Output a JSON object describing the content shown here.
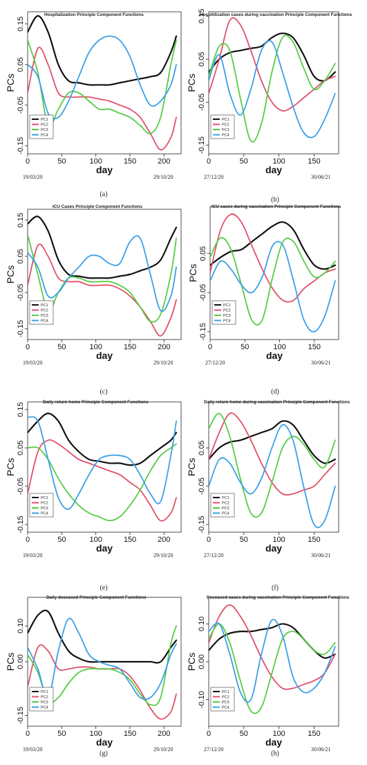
{
  "figure": {
    "y_axis_label": "PCs",
    "x_axis_label": "day"
  },
  "colors": {
    "PC1": "#111111",
    "PC2": "#e0506a",
    "PC3": "#55cc44",
    "PC4": "#3aa0e6"
  },
  "chart_data": [
    {
      "type": "line",
      "caption": "(a)",
      "title": "Hospitalization Principle Component Functions",
      "start_date": "19/03/20",
      "end_date": "29/10/20",
      "legend": "bottom-left",
      "xlim": [
        0,
        225
      ],
      "ylim": [
        -0.17,
        0.18
      ],
      "xticks": [
        "0",
        "50",
        "100",
        "150",
        "200"
      ],
      "xtick_values": [
        0,
        50,
        100,
        150,
        200
      ],
      "yticks": [
        "0.15",
        "0.05",
        "-0.05",
        "-0.15"
      ],
      "ytick_values": [
        0.15,
        0.05,
        -0.05,
        -0.15
      ],
      "x": [
        0,
        15,
        30,
        45,
        60,
        75,
        90,
        105,
        120,
        135,
        150,
        165,
        180,
        195,
        210,
        218
      ],
      "series": [
        {
          "name": "PC1",
          "values": [
            0.13,
            0.17,
            0.13,
            0.05,
            0.01,
            0.005,
            0.0,
            0.0,
            0.0,
            0.005,
            0.01,
            0.015,
            0.02,
            0.03,
            0.08,
            0.12
          ]
        },
        {
          "name": "PC2",
          "values": [
            -0.02,
            0.09,
            0.05,
            -0.02,
            -0.03,
            -0.03,
            -0.03,
            -0.035,
            -0.04,
            -0.05,
            -0.06,
            -0.08,
            -0.12,
            -0.16,
            -0.13,
            -0.08
          ]
        },
        {
          "name": "PC3",
          "values": [
            0.11,
            0.03,
            -0.1,
            -0.06,
            -0.02,
            -0.02,
            -0.04,
            -0.06,
            -0.06,
            -0.07,
            -0.08,
            -0.1,
            -0.12,
            -0.08,
            0.05,
            0.11
          ]
        },
        {
          "name": "PC4",
          "values": [
            0.05,
            0.02,
            -0.07,
            -0.08,
            -0.04,
            0.02,
            0.08,
            0.11,
            0.12,
            0.11,
            0.07,
            0.0,
            -0.05,
            -0.04,
            0.0,
            0.05
          ]
        }
      ]
    },
    {
      "type": "line",
      "caption": "(b)",
      "title": "Hospitilization cases during vaccination Principle Component Functions",
      "start_date": "27/12/20",
      "end_date": "30/06/21",
      "legend": "bottom-left",
      "xlim": [
        0,
        185
      ],
      "ylim": [
        -0.17,
        0.16
      ],
      "xticks": [
        "0",
        "50",
        "100",
        "150"
      ],
      "xtick_values": [
        0,
        50,
        100,
        150
      ],
      "yticks": [
        "0.15",
        "0.05",
        "-0.05",
        "-0.15"
      ],
      "ytick_values": [
        0.15,
        0.05,
        -0.05,
        -0.15
      ],
      "x": [
        0,
        15,
        30,
        45,
        60,
        75,
        90,
        105,
        120,
        135,
        150,
        165,
        180
      ],
      "series": [
        {
          "name": "PC1",
          "values": [
            0.02,
            0.05,
            0.065,
            0.07,
            0.075,
            0.08,
            0.1,
            0.11,
            0.1,
            0.06,
            0.01,
            0.0,
            0.02
          ]
        },
        {
          "name": "PC2",
          "values": [
            -0.03,
            0.05,
            0.14,
            0.13,
            0.07,
            0.0,
            -0.05,
            -0.07,
            -0.06,
            -0.04,
            -0.02,
            0.0,
            0.01
          ]
        },
        {
          "name": "PC3",
          "values": [
            0.01,
            0.08,
            0.07,
            -0.04,
            -0.14,
            -0.1,
            0.02,
            0.1,
            0.09,
            0.03,
            -0.02,
            0.0,
            0.04
          ]
        },
        {
          "name": "PC4",
          "values": [
            0.0,
            0.06,
            -0.03,
            -0.08,
            -0.02,
            0.07,
            0.09,
            0.02,
            -0.06,
            -0.12,
            -0.13,
            -0.09,
            -0.03
          ]
        }
      ]
    },
    {
      "type": "line",
      "caption": "(c)",
      "title": "ICU Cases Principle Component Functions",
      "start_date": "19/03/20",
      "end_date": "29/10/20",
      "legend": "bottom-left",
      "xlim": [
        0,
        225
      ],
      "ylim": [
        -0.18,
        0.18
      ],
      "xticks": [
        "0",
        "50",
        "100",
        "150",
        "200"
      ],
      "xtick_values": [
        0,
        50,
        100,
        150,
        200
      ],
      "yticks": [
        "0.15",
        "0.05",
        "-0.05",
        "-0.15"
      ],
      "ytick_values": [
        0.15,
        0.05,
        -0.05,
        -0.15
      ],
      "x": [
        0,
        15,
        30,
        45,
        60,
        75,
        90,
        105,
        120,
        135,
        150,
        165,
        180,
        195,
        210,
        218
      ],
      "series": [
        {
          "name": "PC1",
          "values": [
            0.14,
            0.16,
            0.12,
            0.04,
            0.0,
            -0.005,
            -0.01,
            -0.01,
            -0.01,
            -0.005,
            0.0,
            0.01,
            0.02,
            0.04,
            0.1,
            0.13
          ]
        },
        {
          "name": "PC2",
          "values": [
            -0.03,
            0.08,
            0.05,
            -0.01,
            -0.02,
            -0.02,
            -0.03,
            -0.03,
            -0.03,
            -0.04,
            -0.06,
            -0.09,
            -0.13,
            -0.17,
            -0.12,
            -0.07
          ]
        },
        {
          "name": "PC3",
          "values": [
            0.11,
            0.0,
            -0.1,
            -0.05,
            -0.01,
            -0.01,
            -0.02,
            -0.02,
            -0.02,
            -0.03,
            -0.05,
            -0.09,
            -0.13,
            -0.11,
            0.0,
            0.1
          ]
        },
        {
          "name": "PC4",
          "values": [
            0.06,
            0.02,
            -0.06,
            -0.05,
            -0.01,
            0.02,
            0.05,
            0.05,
            0.03,
            0.03,
            0.09,
            0.1,
            0.0,
            -0.1,
            -0.06,
            0.02
          ]
        }
      ]
    },
    {
      "type": "line",
      "caption": "(d)",
      "title": "ICU cases during vaccination Principle Component Functions",
      "start_date": "27/12/20",
      "end_date": "30/06/21",
      "legend": "bottom-left",
      "xlim": [
        0,
        185
      ],
      "ylim": [
        -0.17,
        0.17
      ],
      "xticks": [
        "0",
        "50",
        "100",
        "150"
      ],
      "xtick_values": [
        0,
        50,
        100,
        150
      ],
      "yticks": [
        "0.05",
        "-0.05",
        "-0.15"
      ],
      "ytick_values": [
        0.05,
        -0.05,
        -0.15
      ],
      "x": [
        0,
        15,
        30,
        45,
        60,
        75,
        90,
        105,
        120,
        135,
        150,
        165,
        180
      ],
      "series": [
        {
          "name": "PC1",
          "values": [
            0.02,
            0.04,
            0.055,
            0.06,
            0.08,
            0.1,
            0.12,
            0.13,
            0.11,
            0.06,
            0.02,
            0.01,
            0.02
          ]
        },
        {
          "name": "PC2",
          "values": [
            0.0,
            0.11,
            0.15,
            0.13,
            0.07,
            0.01,
            -0.04,
            -0.07,
            -0.07,
            -0.04,
            -0.02,
            0.0,
            0.01
          ]
        },
        {
          "name": "PC3",
          "values": [
            0.04,
            0.09,
            0.06,
            -0.03,
            -0.12,
            -0.12,
            -0.01,
            0.08,
            0.08,
            0.03,
            -0.01,
            0.0,
            0.03
          ]
        },
        {
          "name": "PC4",
          "values": [
            -0.02,
            0.03,
            0.01,
            -0.03,
            -0.05,
            -0.01,
            0.07,
            0.07,
            -0.02,
            -0.12,
            -0.15,
            -0.11,
            -0.02
          ]
        }
      ]
    },
    {
      "type": "line",
      "caption": "(e)",
      "title": "Daily return home Principle Component Functions",
      "start_date": "19/03/20",
      "end_date": "29/10/20",
      "legend": "bottom-left",
      "xlim": [
        0,
        225
      ],
      "ylim": [
        -0.17,
        0.17
      ],
      "xticks": [
        "0",
        "50",
        "100",
        "150",
        "200"
      ],
      "xtick_values": [
        0,
        50,
        100,
        150,
        200
      ],
      "yticks": [
        "0.15",
        "0.05",
        "-0.05",
        "-0.15"
      ],
      "ytick_values": [
        0.15,
        0.05,
        -0.05,
        -0.15
      ],
      "x": [
        0,
        15,
        30,
        45,
        60,
        75,
        90,
        105,
        120,
        135,
        150,
        165,
        180,
        195,
        210,
        218
      ],
      "series": [
        {
          "name": "PC1",
          "values": [
            0.09,
            0.12,
            0.14,
            0.12,
            0.07,
            0.04,
            0.02,
            0.015,
            0.01,
            0.01,
            0.005,
            0.01,
            0.03,
            0.05,
            0.07,
            0.09
          ]
        },
        {
          "name": "PC2",
          "values": [
            -0.07,
            0.04,
            0.07,
            0.06,
            0.04,
            0.02,
            0.01,
            0.0,
            -0.01,
            -0.02,
            -0.04,
            -0.06,
            -0.1,
            -0.14,
            -0.12,
            -0.08
          ]
        },
        {
          "name": "PC3",
          "values": [
            0.05,
            0.05,
            0.02,
            -0.03,
            -0.07,
            -0.1,
            -0.12,
            -0.13,
            -0.14,
            -0.13,
            -0.1,
            -0.06,
            -0.01,
            0.03,
            0.05,
            0.06
          ]
        },
        {
          "name": "PC4",
          "values": [
            0.13,
            0.12,
            0.02,
            -0.08,
            -0.11,
            -0.07,
            -0.02,
            0.02,
            0.03,
            0.03,
            0.02,
            -0.02,
            -0.07,
            -0.09,
            0.03,
            0.12
          ]
        }
      ]
    },
    {
      "type": "line",
      "caption": "(f)",
      "title": "Daily return home during vaccination Principle Component Functions",
      "start_date": "27/12/20",
      "end_date": "30/06/21",
      "legend": "bottom-left",
      "xlim": [
        0,
        185
      ],
      "ylim": [
        -0.17,
        0.17
      ],
      "xticks": [
        "0",
        "50",
        "100",
        "150"
      ],
      "xtick_values": [
        0,
        50,
        100,
        150
      ],
      "yticks": [
        "0.05",
        "-0.05",
        "-0.15"
      ],
      "ytick_values": [
        0.05,
        -0.05,
        -0.15
      ],
      "x": [
        0,
        15,
        30,
        45,
        60,
        75,
        90,
        105,
        120,
        135,
        150,
        165,
        180
      ],
      "series": [
        {
          "name": "PC1",
          "values": [
            0.02,
            0.05,
            0.065,
            0.07,
            0.08,
            0.09,
            0.1,
            0.12,
            0.11,
            0.07,
            0.03,
            0.01,
            0.02
          ]
        },
        {
          "name": "PC2",
          "values": [
            0.02,
            0.09,
            0.14,
            0.12,
            0.07,
            0.01,
            -0.04,
            -0.07,
            -0.07,
            -0.06,
            -0.05,
            -0.02,
            0.01
          ]
        },
        {
          "name": "PC3",
          "values": [
            0.1,
            0.14,
            0.08,
            -0.03,
            -0.12,
            -0.12,
            -0.04,
            0.05,
            0.08,
            0.06,
            0.02,
            0.0,
            0.07
          ]
        },
        {
          "name": "PC4",
          "values": [
            -0.05,
            0.02,
            0.01,
            -0.04,
            -0.07,
            -0.03,
            0.05,
            0.11,
            0.07,
            -0.05,
            -0.15,
            -0.14,
            -0.05
          ]
        }
      ]
    },
    {
      "type": "line",
      "caption": "(g)",
      "title": "Daily deceased Principle Component Functions",
      "start_date": "19/03/20",
      "end_date": "29/10/20",
      "legend": "bottom-left",
      "xlim": [
        0,
        225
      ],
      "ylim": [
        -0.18,
        0.18
      ],
      "xticks": [
        "0",
        "50",
        "100",
        "150",
        "200"
      ],
      "xtick_values": [
        0,
        50,
        100,
        150,
        200
      ],
      "yticks": [
        "0.10",
        "0.00",
        "-0.15"
      ],
      "ytick_values": [
        0.1,
        0.0,
        -0.15
      ],
      "x": [
        0,
        15,
        30,
        45,
        60,
        75,
        90,
        105,
        120,
        135,
        150,
        165,
        180,
        195,
        210,
        218
      ],
      "series": [
        {
          "name": "PC1",
          "values": [
            0.08,
            0.13,
            0.14,
            0.08,
            0.03,
            0.01,
            0.0,
            0.0,
            0.0,
            0.0,
            0.0,
            0.0,
            0.0,
            0.0,
            0.04,
            0.06
          ]
        },
        {
          "name": "PC2",
          "values": [
            -0.07,
            0.04,
            0.03,
            -0.02,
            -0.02,
            -0.015,
            -0.015,
            -0.02,
            -0.02,
            -0.02,
            -0.04,
            -0.08,
            -0.13,
            -0.16,
            -0.14,
            -0.09
          ]
        },
        {
          "name": "PC3",
          "values": [
            0.02,
            -0.03,
            -0.11,
            -0.1,
            -0.06,
            -0.03,
            -0.02,
            -0.02,
            -0.02,
            -0.03,
            -0.05,
            -0.09,
            -0.12,
            -0.1,
            0.05,
            0.1
          ]
        },
        {
          "name": "PC4",
          "values": [
            0.04,
            -0.02,
            -0.1,
            0.03,
            0.12,
            0.08,
            0.02,
            0.0,
            -0.01,
            -0.02,
            -0.06,
            -0.1,
            -0.1,
            -0.06,
            0.02,
            0.05
          ]
        }
      ]
    },
    {
      "type": "line",
      "caption": "(h)",
      "title": "Deceased cases during vaccination Principle Component Functions",
      "start_date": "27/12/20",
      "end_date": "30/06/21",
      "legend": "bottom-left",
      "xlim": [
        0,
        185
      ],
      "ylim": [
        -0.17,
        0.17
      ],
      "xticks": [
        "0",
        "50",
        "100",
        "150"
      ],
      "xtick_values": [
        0,
        50,
        100,
        150
      ],
      "yticks": [
        "0.10",
        "0.00",
        "-0.10"
      ],
      "ytick_values": [
        0.1,
        0.0,
        -0.1
      ],
      "x": [
        0,
        15,
        30,
        45,
        60,
        75,
        90,
        105,
        120,
        135,
        150,
        165,
        180
      ],
      "series": [
        {
          "name": "PC1",
          "values": [
            0.03,
            0.06,
            0.075,
            0.08,
            0.08,
            0.085,
            0.09,
            0.1,
            0.09,
            0.06,
            0.03,
            0.01,
            0.02
          ]
        },
        {
          "name": "PC2",
          "values": [
            0.05,
            0.12,
            0.15,
            0.12,
            0.07,
            0.01,
            -0.04,
            -0.07,
            -0.07,
            -0.06,
            -0.05,
            -0.03,
            0.02
          ]
        },
        {
          "name": "PC3",
          "values": [
            0.06,
            0.1,
            0.05,
            -0.05,
            -0.13,
            -0.12,
            -0.03,
            0.06,
            0.08,
            0.06,
            0.03,
            0.02,
            0.05
          ]
        },
        {
          "name": "PC4",
          "values": [
            0.08,
            0.1,
            0.02,
            -0.08,
            -0.1,
            0.02,
            0.11,
            0.07,
            -0.04,
            -0.08,
            -0.07,
            -0.03,
            0.04
          ]
        }
      ]
    }
  ]
}
